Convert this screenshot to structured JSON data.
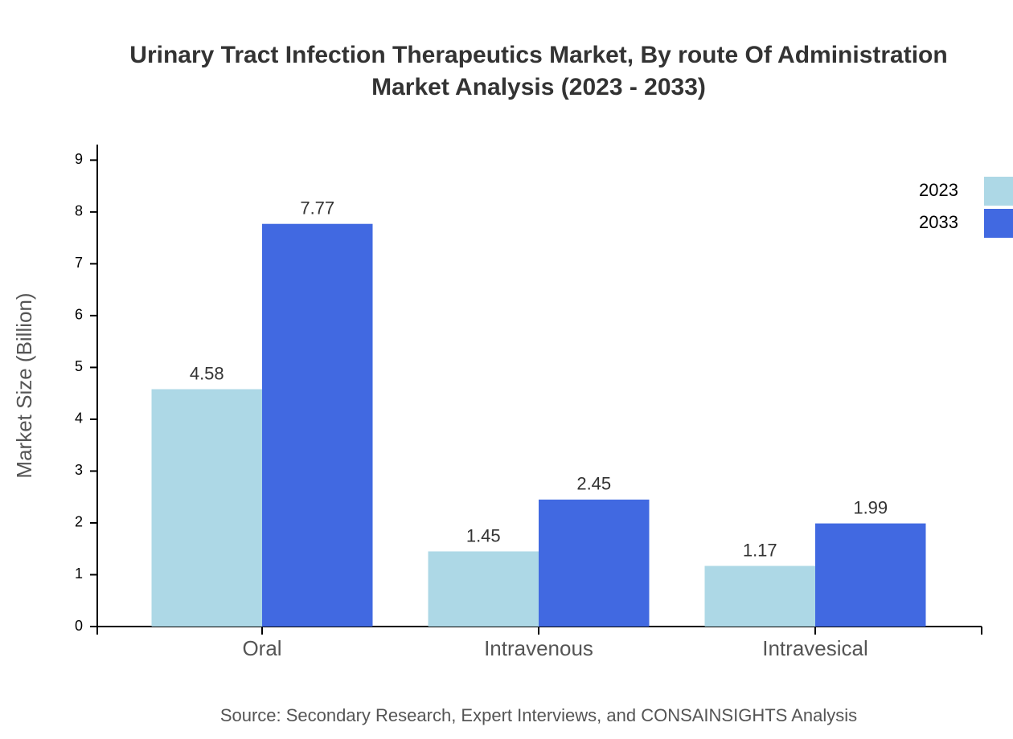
{
  "chart_data": {
    "type": "bar",
    "title": [
      "Urinary Tract Infection Therapeutics Market, By route Of Administration",
      "Market Analysis (2023 - 2033)"
    ],
    "y_label": "Market Size (Billion)",
    "source": "Source: Secondary Research, Expert Interviews, and CONSAINSIGHTS Analysis",
    "categories": [
      "Oral",
      "Intravenous",
      "Intravesical"
    ],
    "series": [
      {
        "name": "2023",
        "color": "#add8e6",
        "values": [
          4.58,
          1.45,
          1.17
        ]
      },
      {
        "name": "2033",
        "color": "#4169e1",
        "values": [
          7.77,
          2.45,
          1.99
        ]
      }
    ],
    "ylim": [
      0,
      9.3
    ],
    "yticks": [
      0,
      1,
      2,
      3,
      4,
      5,
      6,
      7,
      8,
      9
    ],
    "grid": false,
    "legend": "top-right"
  }
}
